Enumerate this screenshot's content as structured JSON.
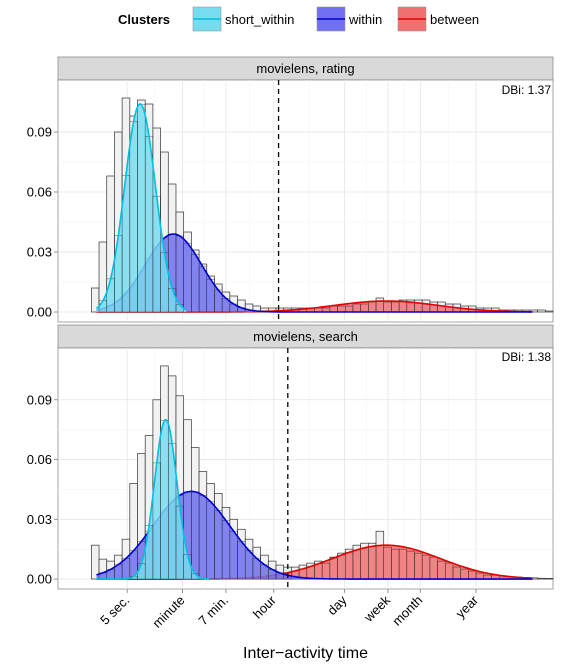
{
  "legend": {
    "title": "Clusters",
    "items": [
      {
        "label": "short_within",
        "fill": "#78DCF0",
        "stroke": "#00BFE0"
      },
      {
        "label": "within",
        "fill": "#7070F0",
        "stroke": "#0000CC"
      },
      {
        "label": "between",
        "fill": "#F07070",
        "stroke": "#E00000"
      }
    ]
  },
  "chart_data": {
    "type": "histogram with fitted density curves (faceted)",
    "xlabel": "Inter−activity time",
    "ylabel": "",
    "x_scale": "log10 of seconds",
    "x_ticks": [
      {
        "label": "5 sec.",
        "log10_seconds": 0.699
      },
      {
        "label": "minute",
        "log10_seconds": 1.778
      },
      {
        "label": "7 min.",
        "log10_seconds": 2.623
      },
      {
        "label": "hour",
        "log10_seconds": 3.556
      },
      {
        "label": "day",
        "log10_seconds": 4.936
      },
      {
        "label": "week",
        "log10_seconds": 5.782
      },
      {
        "label": "month",
        "log10_seconds": 6.413
      },
      {
        "label": "year",
        "log10_seconds": 7.499
      }
    ],
    "xlim": [
      -0.65,
      9.0
    ],
    "ylim": [
      -0.005,
      0.116
    ],
    "y_ticks": [
      0.0,
      0.03,
      0.06,
      0.09
    ],
    "y_tick_labels": [
      "0.00",
      "0.03",
      "0.06",
      "0.09"
    ],
    "grid": true,
    "legend_position": "top",
    "threshold_line": {
      "style": "dashed",
      "x_log10_seconds": 3.65
    },
    "panels": [
      {
        "title": "movielens, rating",
        "annotation": "DBi: 1.37",
        "threshold_x": 3.65,
        "bin_start": 0.0,
        "bin_width": 0.15,
        "histogram": [
          0.012,
          0.035,
          0.068,
          0.09,
          0.107,
          0.098,
          0.106,
          0.104,
          0.092,
          0.08,
          0.064,
          0.05,
          0.04,
          0.031,
          0.024,
          0.018,
          0.014,
          0.01,
          0.008,
          0.006,
          0.004,
          0.003,
          0.002,
          0.002,
          0.002,
          0.002,
          0.002,
          0.002,
          0.002,
          0.002,
          0.002,
          0.003,
          0.003,
          0.003,
          0.004,
          0.004,
          0.005,
          0.007,
          0.005,
          0.005,
          0.006,
          0.006,
          0.006,
          0.006,
          0.005,
          0.005,
          0.004,
          0.004,
          0.003,
          0.003,
          0.002,
          0.002,
          0.002,
          0.001,
          0.001,
          0.001,
          0.001,
          0.001,
          0.001,
          0.0005
        ],
        "curves": [
          {
            "cluster": "short_within",
            "mean": 0.95,
            "sd": 0.3,
            "peak": 0.104,
            "range": [
              0.1,
              1.85
            ]
          },
          {
            "cluster": "within",
            "mean": 1.6,
            "sd": 0.55,
            "peak": 0.039,
            "range": [
              0.1,
              8.6
            ]
          },
          {
            "cluster": "between",
            "mean": 5.75,
            "sd": 1.0,
            "peak": 0.0055,
            "range": [
              0.1,
              8.6
            ]
          }
        ]
      },
      {
        "title": "movielens, search",
        "annotation": "DBi: 1.38",
        "threshold_x": 3.83,
        "bin_start": 0.0,
        "bin_width": 0.15,
        "histogram": [
          0.017,
          0.01,
          0.009,
          0.012,
          0.02,
          0.048,
          0.063,
          0.072,
          0.09,
          0.107,
          0.102,
          0.092,
          0.08,
          0.066,
          0.054,
          0.048,
          0.043,
          0.036,
          0.03,
          0.025,
          0.02,
          0.016,
          0.012,
          0.009,
          0.007,
          0.006,
          0.006,
          0.007,
          0.008,
          0.009,
          0.008,
          0.011,
          0.013,
          0.015,
          0.017,
          0.018,
          0.018,
          0.024,
          0.016,
          0.015,
          0.015,
          0.014,
          0.013,
          0.012,
          0.011,
          0.009,
          0.008,
          0.006,
          0.005,
          0.004,
          0.003,
          0.002,
          0.002,
          0.001,
          0.001,
          0.001,
          0.0008,
          0.0006,
          0.0004,
          0.0003
        ],
        "curves": [
          {
            "cluster": "short_within",
            "mean": 1.45,
            "sd": 0.22,
            "peak": 0.08,
            "range": [
              0.1,
              2.3
            ]
          },
          {
            "cluster": "within",
            "mean": 1.95,
            "sd": 0.75,
            "peak": 0.044,
            "range": [
              0.1,
              8.6
            ]
          },
          {
            "cluster": "between",
            "mean": 5.75,
            "sd": 1.05,
            "peak": 0.017,
            "range": [
              0.1,
              8.6
            ]
          }
        ]
      }
    ]
  }
}
